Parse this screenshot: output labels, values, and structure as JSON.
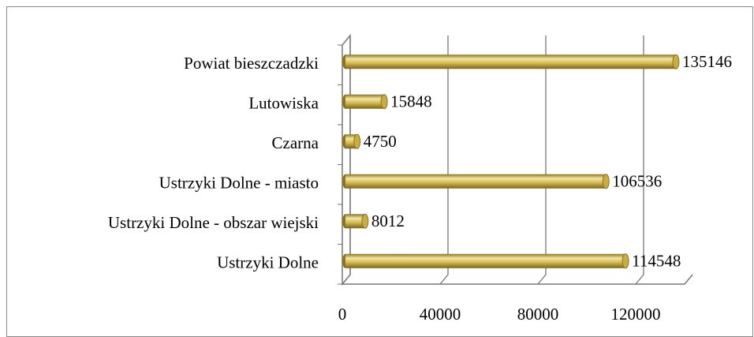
{
  "chart_data": {
    "type": "bar",
    "orientation": "horizontal",
    "categories": [
      "Powiat bieszczadzki",
      "Lutowiska",
      "Czarna",
      "Ustrzyki Dolne - miasto",
      "Ustrzyki Dolne - obszar wiejski",
      "Ustrzyki Dolne"
    ],
    "values": [
      135146,
      15848,
      4750,
      106536,
      8012,
      114548
    ],
    "color": "#d4b94e",
    "xlim": [
      0,
      140000
    ],
    "xticks": [
      0,
      40000,
      80000,
      120000
    ],
    "grid": true
  }
}
